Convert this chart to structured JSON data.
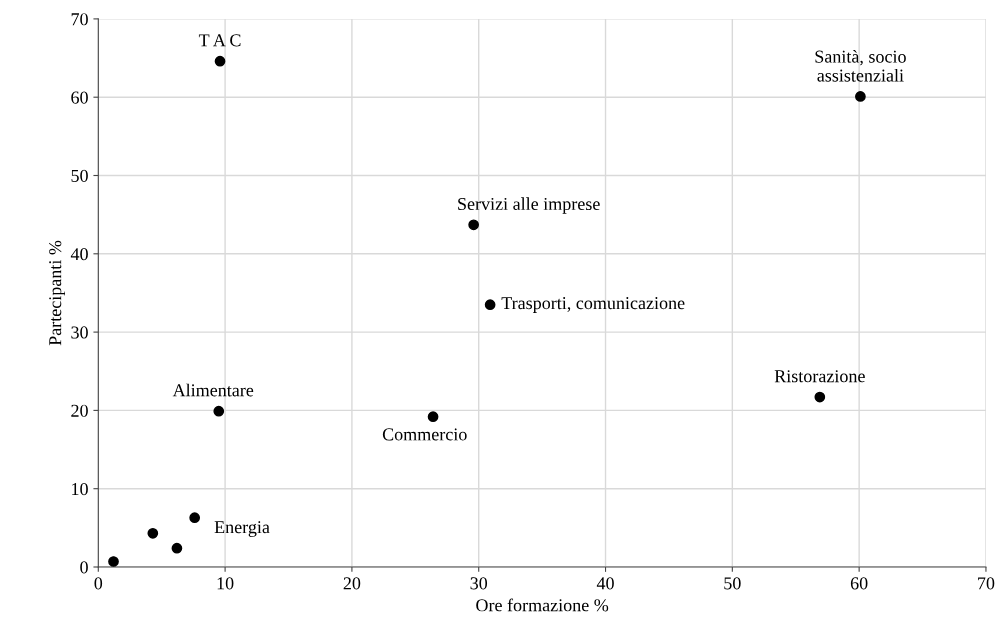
{
  "chart_data": {
    "type": "scatter",
    "xlabel": "Ore formazione %",
    "ylabel": "Partecipanti %",
    "x": [
      1.2,
      4.3,
      6.2,
      7.6,
      9.5,
      9.6,
      26.4,
      29.6,
      30.9,
      56.9,
      60.1
    ],
    "series": [
      {
        "color": "#000000",
        "values": [
          0.7,
          4.3,
          2.4,
          6.3,
          19.9,
          64.6,
          19.2,
          43.7,
          33.5,
          21.7,
          60.1
        ]
      }
    ],
    "xlim": [
      0,
      70
    ],
    "xticks": [
      0,
      10,
      20,
      30,
      40,
      50,
      60,
      70
    ],
    "ylim": [
      0,
      70
    ],
    "yticks": [
      0,
      10,
      20,
      30,
      40,
      50,
      60,
      70
    ],
    "grid": true,
    "marker": "circle",
    "annotations": [
      {
        "text": "T A C",
        "x": 9.6,
        "y": 64.6
      },
      {
        "text": "Sanità, socio\nassistenziali",
        "x": 60.1,
        "y": 60.1
      },
      {
        "text": "Servizi alle imprese",
        "x": 29.6,
        "y": 43.7
      },
      {
        "text": "Trasporti, comunicazione",
        "x": 30.9,
        "y": 33.5
      },
      {
        "text": "Ristorazione",
        "x": 56.9,
        "y": 21.7
      },
      {
        "text": "Alimentare",
        "x": 9.5,
        "y": 19.9
      },
      {
        "text": "Commercio",
        "x": 26.4,
        "y": 19.2
      },
      {
        "text": "Energia",
        "x": 7.6,
        "y": 6.3
      }
    ]
  }
}
